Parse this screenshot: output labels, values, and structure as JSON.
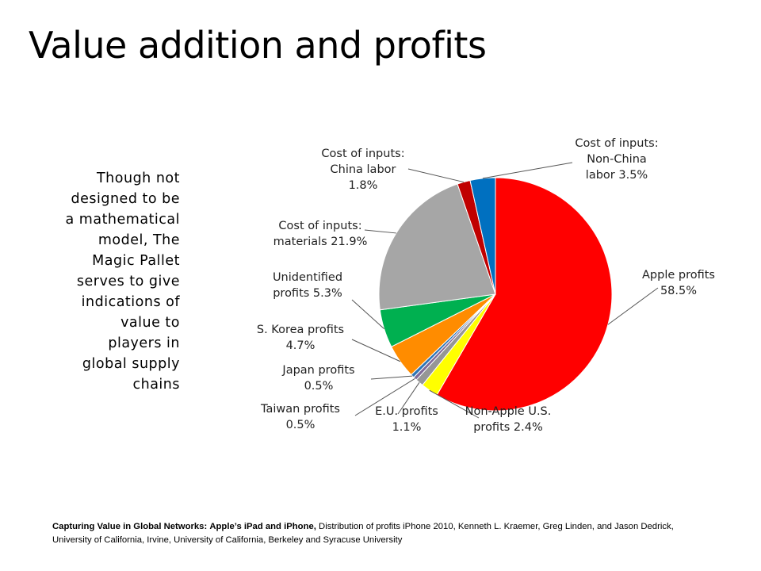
{
  "slide": {
    "title": "Value addition and profits",
    "side_note": "Though not designed to be a mathematical model, The Magic Pallet serves to give indications of value to players in global supply chains"
  },
  "citation": {
    "source_title": "Capturing Value in Global Networks:",
    "works": "Apple’s iPad and iPhone,",
    "rest": "Distribution of profits iPhone 2010, Kenneth L. Kraemer, Greg Linden, and Jason Dedrick, University of California, Irvine, University of California, Berkeley and Syracuse University"
  },
  "chart_data": {
    "type": "pie",
    "title": "",
    "start": "12 o'clock, clockwise",
    "slices": [
      {
        "label_lines": [
          "Apple profits",
          "58.5%"
        ],
        "value": 58.5,
        "color": "#ff0000"
      },
      {
        "label_lines": [
          "Non-Apple U.S.",
          "profits 2.4%"
        ],
        "value": 2.4,
        "color": "#ffff00"
      },
      {
        "label_lines": [
          "E.U. profits",
          "1.1%"
        ],
        "value": 1.1,
        "color": "#969696"
      },
      {
        "label_lines": [
          "Taiwan profits",
          "0.5%"
        ],
        "value": 0.5,
        "color": "#7f6a9a"
      },
      {
        "label_lines": [
          "Japan profits",
          "0.5%"
        ],
        "value": 0.5,
        "color": "#2e75b6"
      },
      {
        "label_lines": [
          "S. Korea profits",
          "4.7%"
        ],
        "value": 4.7,
        "color": "#ff8c00"
      },
      {
        "label_lines": [
          "Unidentified",
          "profits 5.3%"
        ],
        "value": 5.3,
        "color": "#00b050"
      },
      {
        "label_lines": [
          "Cost of inputs:",
          "materials 21.9%"
        ],
        "value": 21.9,
        "color": "#a6a6a6"
      },
      {
        "label_lines": [
          "Cost of inputs:",
          "China labor",
          "1.8%"
        ],
        "value": 1.8,
        "color": "#c00000"
      },
      {
        "label_lines": [
          "Cost of inputs:",
          "Non-China",
          "labor 3.5%"
        ],
        "value": 3.5,
        "color": "#0070c0"
      }
    ]
  }
}
